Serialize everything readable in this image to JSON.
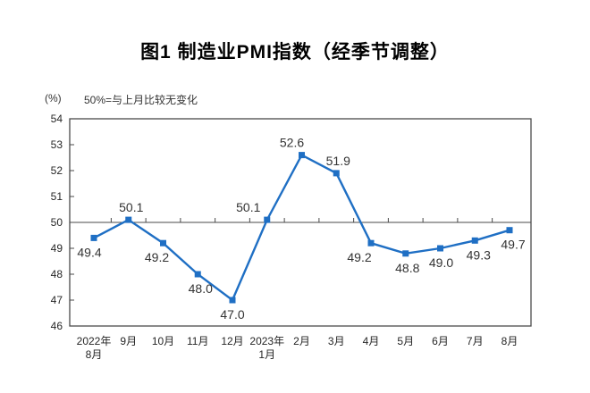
{
  "title": "图1 制造业PMI指数（经季节调整）",
  "axis_note": {
    "unit": "(%)",
    "note": "50%=与上月比较无变化"
  },
  "colors": {
    "line": "#1F6FC4",
    "marker": "#1F6FC4",
    "axis": "#4a4a4a",
    "text": "#262626",
    "data_label": "#333333",
    "background": "#ffffff"
  },
  "chart_data": {
    "type": "line",
    "title": "图1 制造业PMI指数（经季节调整）",
    "ylabel": "(%)",
    "annotation": "50%=与上月比较无变化",
    "categories": [
      [
        "2022年",
        "8月"
      ],
      [
        "9月"
      ],
      [
        "10月"
      ],
      [
        "11月"
      ],
      [
        "12月"
      ],
      [
        "2023年",
        "1月"
      ],
      [
        "2月"
      ],
      [
        "3月"
      ],
      [
        "4月"
      ],
      [
        "5月"
      ],
      [
        "6月"
      ],
      [
        "7月"
      ],
      [
        "8月"
      ]
    ],
    "values": [
      49.4,
      50.1,
      49.2,
      48.0,
      47.0,
      50.1,
      52.6,
      51.9,
      49.2,
      48.8,
      49.0,
      49.3,
      49.7
    ],
    "value_labels": [
      "49.4",
      "50.1",
      "49.2",
      "48.0",
      "47.0",
      "50.1",
      "52.6",
      "51.9",
      "49.2",
      "48.8",
      "49.0",
      "49.3",
      "49.7"
    ],
    "label_side": [
      "below",
      "above",
      "below",
      "below",
      "below",
      "above",
      "above",
      "above",
      "below",
      "below",
      "below",
      "below",
      "below"
    ],
    "label_dx": [
      -5,
      3,
      -7,
      3,
      0,
      -21,
      -11,
      2,
      -13,
      2,
      1,
      4,
      4
    ],
    "ylim": [
      46,
      54
    ],
    "ytick_step": 1,
    "reference_line": 50,
    "grid": false,
    "legend": "none",
    "marker": "square"
  }
}
